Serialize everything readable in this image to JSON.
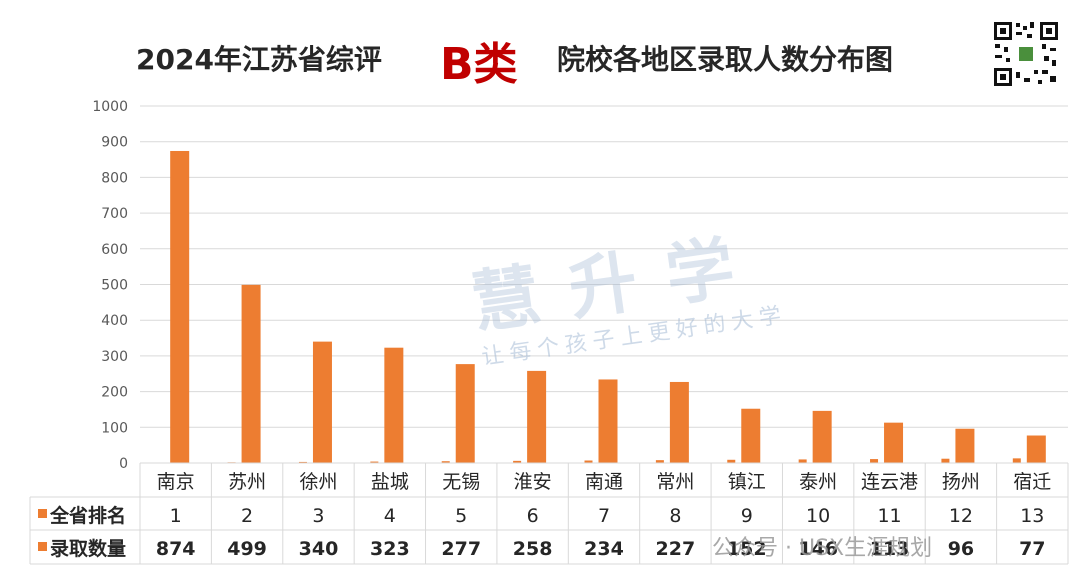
{
  "header": {
    "title_left": "2024年江苏省综评",
    "title_category": "B类",
    "title_right": "院校各地区录取人数分布图"
  },
  "watermark": {
    "brand": "慧升学",
    "slogan": "让每个孩子上更好的大学",
    "wechat": "公众号 · USX生涯规划"
  },
  "colors": {
    "bar": "#ed7d31",
    "title_accent": "#c00000",
    "grid": "#d9d9d9"
  },
  "chart_data": {
    "type": "bar",
    "title": "2024年江苏省综评B类院校各地区录取人数分布图",
    "categories": [
      "南京",
      "苏州",
      "徐州",
      "盐城",
      "无锡",
      "淮安",
      "南通",
      "常州",
      "镇江",
      "泰州",
      "连云港",
      "扬州",
      "宿迁"
    ],
    "ylim": [
      0,
      1000
    ],
    "yticks": [
      0,
      100,
      200,
      300,
      400,
      500,
      600,
      700,
      800,
      900,
      1000
    ],
    "series": [
      {
        "name": "全省排名",
        "values": [
          1,
          2,
          3,
          4,
          5,
          6,
          7,
          8,
          9,
          10,
          11,
          12,
          13
        ]
      },
      {
        "name": "录取数量",
        "values": [
          874,
          499,
          340,
          323,
          277,
          258,
          234,
          227,
          152,
          146,
          113,
          96,
          77
        ]
      }
    ],
    "legend_position": "bottom-left-table"
  }
}
